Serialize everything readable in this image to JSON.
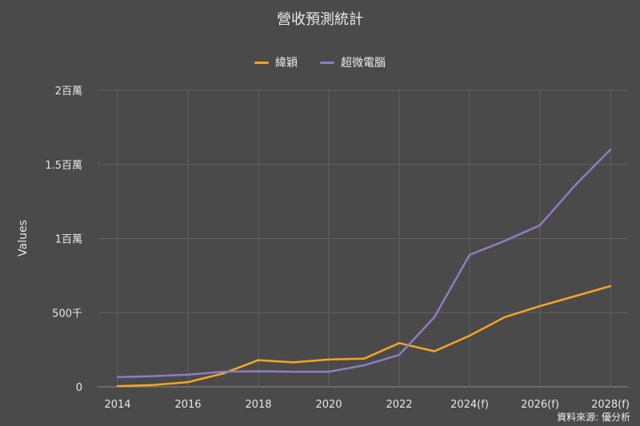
{
  "chart_data": {
    "type": "line",
    "title": "營收預測統計",
    "xlabel": "",
    "ylabel": "Values",
    "x_tick_labels": [
      "2014",
      "2016",
      "2018",
      "2020",
      "2022",
      "2024(f)",
      "2026(f)",
      "2028(f)"
    ],
    "categories": [
      "2014",
      "2015",
      "2016",
      "2017",
      "2018",
      "2019",
      "2020",
      "2021",
      "2022",
      "2023",
      "2024(f)",
      "2025(f)",
      "2026(f)",
      "2027(f)",
      "2028(f)"
    ],
    "y_tick_labels": [
      "0",
      "500千",
      "1百萬",
      "1.5百萬",
      "2百萬"
    ],
    "ylim": [
      0,
      2000000
    ],
    "grid": true,
    "legend_position": "top-center",
    "series": [
      {
        "name": "緯穎",
        "color": "#f5a623",
        "values": [
          5000,
          12000,
          32000,
          90000,
          180000,
          165000,
          185000,
          190000,
          295000,
          240000,
          345000,
          470000,
          545000,
          612000,
          680000
        ]
      },
      {
        "name": "超微電腦",
        "color": "#8e7cc3",
        "values": [
          65000,
          72000,
          82000,
          102000,
          105000,
          102000,
          102000,
          145000,
          215000,
          470000,
          890000,
          985000,
          1090000,
          1360000,
          1600000
        ]
      }
    ],
    "source": "資料來源: 優分析"
  }
}
